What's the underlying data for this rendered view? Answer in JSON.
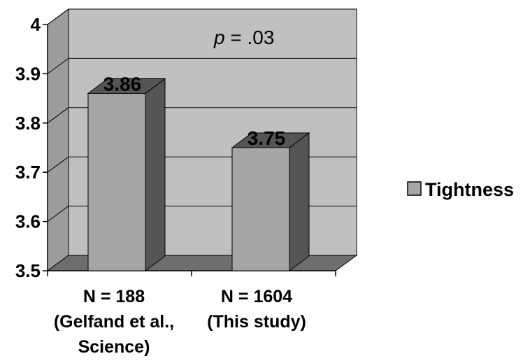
{
  "chart_data": {
    "type": "bar",
    "categories": [
      [
        "N = 188",
        "(Gelfand et al.,",
        "Science)"
      ],
      [
        "N = 1604",
        "(This study)"
      ]
    ],
    "series": [
      {
        "name": "Tightness",
        "values": [
          3.86,
          3.75
        ],
        "color": "#a6a6a6"
      }
    ],
    "data_labels": [
      "3.86",
      "3.75"
    ],
    "ylim": [
      3.5,
      4
    ],
    "yticks": [
      "4",
      "3.9",
      "3.8",
      "3.7",
      "3.6",
      "3.5"
    ],
    "annotation": {
      "italic": "p",
      "text": " = .03"
    },
    "grid": true,
    "legend": "right",
    "three_d": true,
    "wall_color": "#c0c0c0",
    "floor_color": "#6e6e6e",
    "bar_side_color": "#555555",
    "bar_top_color": "#555555"
  }
}
